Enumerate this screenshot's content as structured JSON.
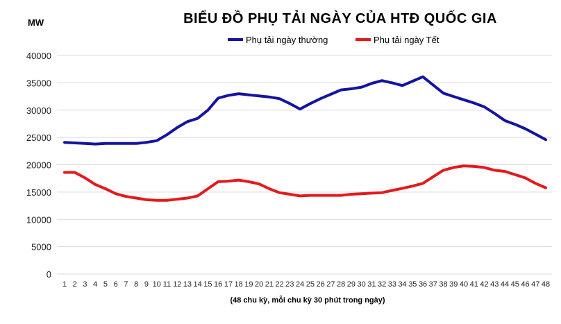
{
  "chart_data": {
    "type": "line",
    "title": "BIỂU ĐỒ PHỤ TẢI NGÀY CỦA HTĐ QUỐC GIA",
    "ylabel": "MW",
    "xlabel": "(48 chu kỳ, mỗi chu kỳ 30 phút trong ngày)",
    "ylim": [
      0,
      40000
    ],
    "yticks": [
      0,
      5000,
      10000,
      15000,
      20000,
      25000,
      30000,
      35000,
      40000
    ],
    "grid": true,
    "legend_position": "top-center",
    "categories": [
      "1",
      "2",
      "3",
      "4",
      "5",
      "6",
      "7",
      "8",
      "9",
      "10",
      "11",
      "12",
      "13",
      "14",
      "15",
      "16",
      "17",
      "18",
      "19",
      "20",
      "21",
      "22",
      "23",
      "24",
      "25",
      "26",
      "27",
      "28",
      "29",
      "30",
      "31",
      "32",
      "33",
      "34",
      "35",
      "36",
      "37",
      "38",
      "39",
      "40",
      "41",
      "42",
      "43",
      "44",
      "45",
      "46",
      "47",
      "48"
    ],
    "series": [
      {
        "name": "Phụ tải ngày thường",
        "color": "#1414a0",
        "values": [
          24100,
          24000,
          23900,
          23800,
          23900,
          23900,
          23900,
          23900,
          24100,
          24400,
          25500,
          26800,
          27900,
          28500,
          30000,
          32200,
          32700,
          33000,
          32800,
          32600,
          32400,
          32100,
          31200,
          30200,
          31200,
          32100,
          32900,
          33700,
          33900,
          34200,
          34900,
          35400,
          35000,
          34500,
          35300,
          36100,
          34600,
          33100,
          32500,
          31900,
          31300,
          30600,
          29400,
          28100,
          27400,
          26600,
          25600,
          24600
        ]
      },
      {
        "name": "Phụ tải ngày Tết",
        "color": "#e31a1c",
        "values": [
          18600,
          18600,
          17600,
          16400,
          15600,
          14700,
          14200,
          13900,
          13600,
          13500,
          13500,
          13700,
          13900,
          14300,
          15600,
          16900,
          17000,
          17200,
          16900,
          16500,
          15600,
          14900,
          14600,
          14300,
          14400,
          14400,
          14400,
          14400,
          14600,
          14700,
          14800,
          14900,
          15300,
          15700,
          16100,
          16600,
          17800,
          19000,
          19500,
          19800,
          19700,
          19500,
          19000,
          18800,
          18200,
          17600,
          16600,
          15800
        ]
      }
    ]
  }
}
